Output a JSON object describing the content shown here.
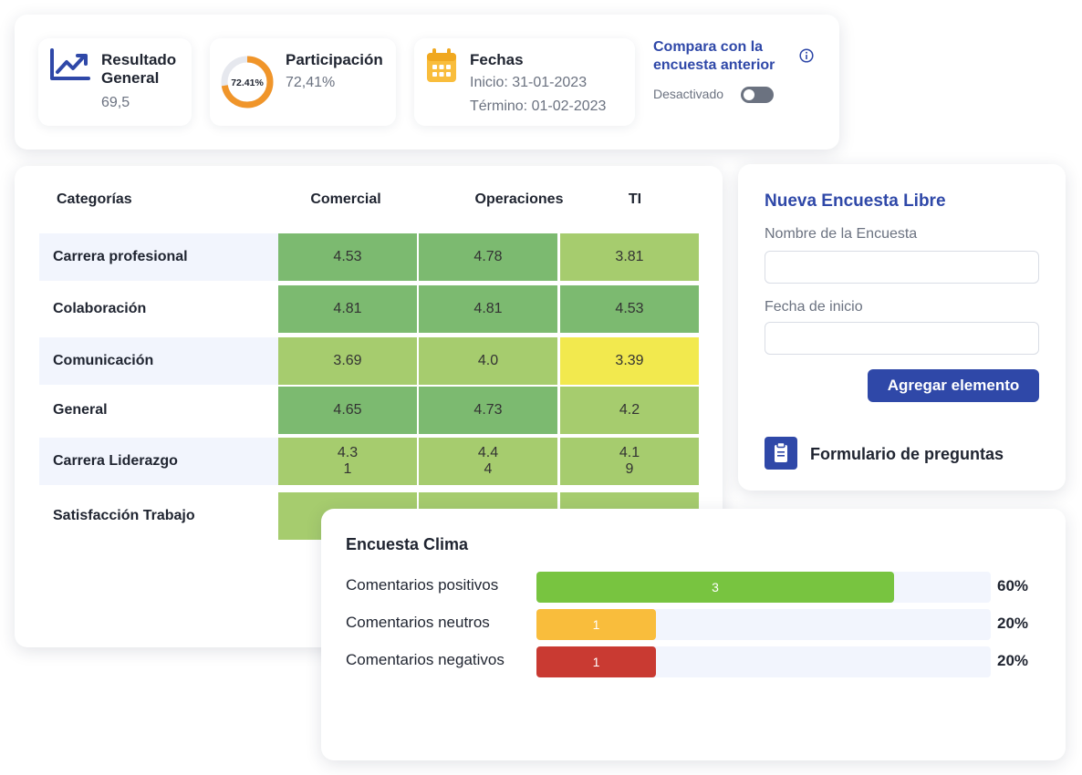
{
  "summary": {
    "result": {
      "title_line1": "Resultado",
      "title_line2": "General",
      "value": "69,5",
      "icon": "trend-chart-icon"
    },
    "participation": {
      "title": "Participación",
      "value": "72,41%",
      "ring_label": "72.41%",
      "ring_fraction": 0.7241,
      "ring_color": "#f0952a"
    },
    "dates": {
      "title": "Fechas",
      "start": "Inicio: 31-01-2023",
      "end": "Término: 01-02-2023",
      "icon": "calendar-icon"
    },
    "compare": {
      "title": "Compara con la encuesta anterior",
      "state": "Desactivado",
      "enabled": false,
      "icon": "info-icon"
    }
  },
  "heatmap": {
    "headers": {
      "category": "Categorías",
      "cols": [
        "Comercial",
        "Operaciones",
        "TI"
      ]
    },
    "rows": [
      {
        "label": "Carrera profesional",
        "values": [
          "4.53",
          "4.78",
          "3.81"
        ],
        "colors": [
          "#7cba70",
          "#7cba70",
          "#a6cc6e"
        ]
      },
      {
        "label": "Colaboración",
        "values": [
          "4.81",
          "4.81",
          "4.53"
        ],
        "colors": [
          "#7cba70",
          "#7cba70",
          "#7cba70"
        ]
      },
      {
        "label": "Comunicación",
        "values": [
          "3.69",
          "4.0",
          "3.39"
        ],
        "colors": [
          "#a6cc6e",
          "#a6cc6e",
          "#f2e94e"
        ]
      },
      {
        "label": "General",
        "values": [
          "4.65",
          "4.73",
          "4.2"
        ],
        "colors": [
          "#7cba70",
          "#7cba70",
          "#a6cc6e"
        ]
      },
      {
        "label": "Carrera Liderazgo",
        "values": [
          "4.3\n1",
          "4.4\n4",
          "4.1\n9"
        ],
        "colors": [
          "#a6cc6e",
          "#a6cc6e",
          "#a6cc6e"
        ]
      },
      {
        "label": "Satisfacción Trabajo",
        "values": [
          "",
          "",
          ""
        ],
        "colors": [
          "#a6cc6e",
          "#a6cc6e",
          "#a6cc6e"
        ]
      }
    ]
  },
  "new_survey": {
    "title": "Nueva Encuesta Libre",
    "name_label": "Nombre de la Encuesta",
    "name_value": "",
    "date_label": "Fecha de inicio",
    "date_value": "",
    "add_button": "Agregar elemento",
    "form_link": "Formulario de preguntas",
    "form_icon": "clipboard-icon"
  },
  "clima": {
    "title": "Encuesta Clima",
    "rows": [
      {
        "label": "Comentarios positivos",
        "count": "3",
        "fraction": 0.6,
        "pct": "60%",
        "color": "#78c440"
      },
      {
        "label": "Comentarios neutros",
        "count": "1",
        "fraction": 0.2,
        "pct": "20%",
        "color": "#f9bd3c"
      },
      {
        "label": "Comentarios negativos",
        "count": "1",
        "fraction": 0.2,
        "pct": "20%",
        "color": "#c93a32"
      }
    ]
  },
  "colors": {
    "accent": "#2f48a8",
    "calendar": "#f9bd3c"
  }
}
